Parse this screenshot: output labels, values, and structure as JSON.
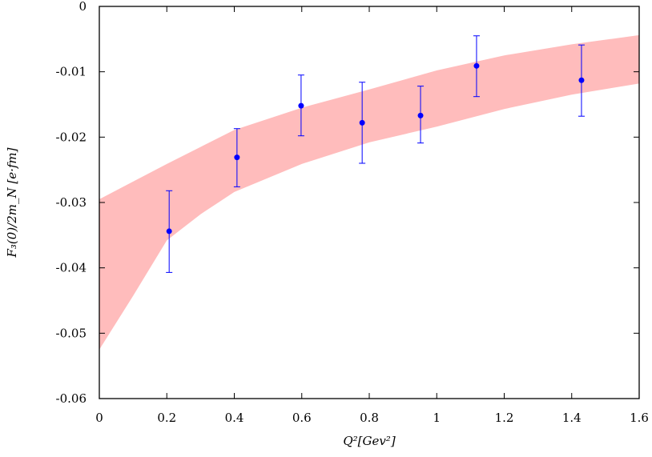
{
  "chart_data": {
    "type": "scatter",
    "title": "",
    "xlabel": "Q²[Gev²]",
    "ylabel": "F₃(0)/2m_N [e·fm]",
    "xlim": [
      0,
      1.6
    ],
    "ylim": [
      -0.06,
      0
    ],
    "xticks": [
      "0",
      "0.2",
      "0.4",
      "0.6",
      "0.8",
      "1",
      "1.2",
      "1.4",
      "1.6"
    ],
    "yticks": [
      "0",
      "-0.01",
      "-0.02",
      "-0.03",
      "-0.04",
      "-0.05",
      "-0.06"
    ],
    "grid": false,
    "legend": "none",
    "points": {
      "color": "#0000ff",
      "x": [
        0.207,
        0.408,
        0.598,
        0.779,
        0.952,
        1.118,
        1.429
      ],
      "y": [
        -0.0344,
        -0.0231,
        -0.0152,
        -0.0178,
        -0.0167,
        -0.0091,
        -0.0113
      ],
      "y_upper": [
        -0.0282,
        -0.0187,
        -0.0105,
        -0.0116,
        -0.0122,
        -0.0045,
        -0.0059
      ],
      "y_lower": [
        -0.0407,
        -0.0276,
        -0.0198,
        -0.024,
        -0.0209,
        -0.0138,
        -0.0168
      ]
    },
    "band": {
      "color": "#ffbcbc",
      "x": [
        0,
        0.1,
        0.2,
        0.3,
        0.4,
        0.6,
        0.8,
        1.0,
        1.2,
        1.4,
        1.6
      ],
      "upper": [
        -0.0295,
        -0.0268,
        -0.0241,
        -0.0215,
        -0.0189,
        -0.0155,
        -0.0127,
        -0.0098,
        -0.0075,
        -0.0058,
        -0.0044
      ],
      "lower": [
        -0.0525,
        -0.0443,
        -0.0358,
        -0.0318,
        -0.0284,
        -0.0241,
        -0.0208,
        -0.0184,
        -0.0157,
        -0.0135,
        -0.0118
      ]
    }
  }
}
